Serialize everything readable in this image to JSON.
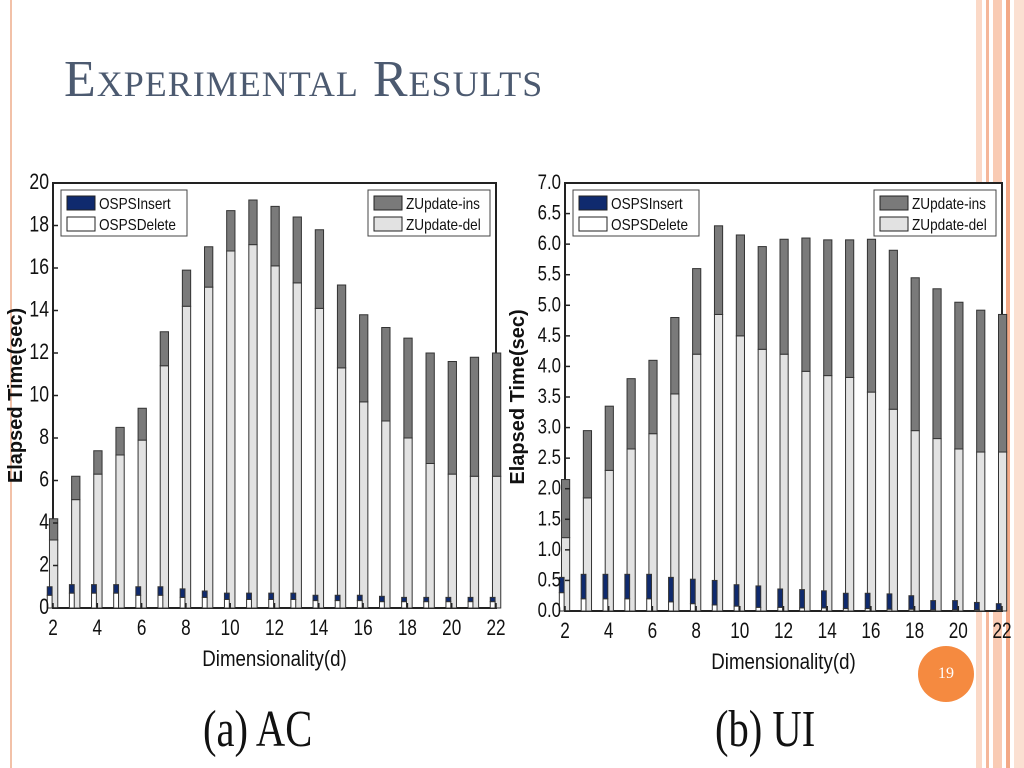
{
  "slide": {
    "title": "Experimental Results",
    "page_number": "19",
    "captions": [
      "(a) AC",
      "(b) UI"
    ]
  },
  "colors": {
    "insert": "#0f2a6e",
    "delete": "#ffffff",
    "zupdate_ins": "#7a7a7a",
    "zupdate_del": "#e2e2e2",
    "title": "#4c5a70",
    "badge": "#f58a40"
  },
  "chart_data": [
    {
      "type": "bar",
      "stacked": true,
      "xlabel": "Dimensionality(d)",
      "ylabel": "Elapsed Time(sec)",
      "ylim": [
        0,
        20
      ],
      "yticks": [
        "0",
        "2",
        "4",
        "6",
        "8",
        "10",
        "12",
        "14",
        "16",
        "18",
        "20"
      ],
      "xticks": [
        "2",
        "4",
        "6",
        "8",
        "10",
        "12",
        "14",
        "16",
        "18",
        "20",
        "22"
      ],
      "categories": [
        2,
        3,
        4,
        5,
        6,
        7,
        8,
        9,
        10,
        11,
        12,
        13,
        14,
        15,
        16,
        17,
        18,
        19,
        20,
        21,
        22
      ],
      "series_pairs": [
        {
          "bottom": "OSPSInsert",
          "top": "OSPSDelete"
        },
        {
          "bottom": "ZUpdate-del",
          "top": "ZUpdate-ins"
        }
      ],
      "legend": [
        {
          "name": "OSPSInsert",
          "position": "top-left"
        },
        {
          "name": "OSPSDelete",
          "position": "top-left"
        },
        {
          "name": "ZUpdate-ins",
          "position": "top-right"
        },
        {
          "name": "ZUpdate-del",
          "position": "top-right"
        }
      ],
      "ospsinsert": [
        0.6,
        0.7,
        0.7,
        0.7,
        0.6,
        0.6,
        0.5,
        0.5,
        0.4,
        0.4,
        0.4,
        0.4,
        0.35,
        0.35,
        0.35,
        0.3,
        0.3,
        0.3,
        0.3,
        0.3,
        0.3
      ],
      "ospsdelete": [
        0.4,
        0.4,
        0.4,
        0.4,
        0.4,
        0.4,
        0.4,
        0.3,
        0.3,
        0.3,
        0.3,
        0.3,
        0.25,
        0.25,
        0.25,
        0.25,
        0.2,
        0.2,
        0.2,
        0.2,
        0.2
      ],
      "zupdate_del": [
        3.2,
        5.1,
        6.3,
        7.2,
        7.9,
        11.4,
        14.2,
        15.1,
        16.8,
        17.1,
        16.1,
        15.3,
        14.1,
        11.3,
        9.7,
        8.8,
        8.0,
        6.8,
        6.3,
        6.2,
        6.2
      ],
      "zupdate_ins": [
        1.0,
        1.1,
        1.1,
        1.3,
        1.5,
        1.6,
        1.7,
        1.9,
        1.9,
        2.1,
        2.8,
        3.1,
        3.7,
        3.9,
        4.1,
        4.4,
        4.7,
        5.2,
        5.3,
        5.6,
        5.8
      ]
    },
    {
      "type": "bar",
      "stacked": true,
      "xlabel": "Dimensionality(d)",
      "ylabel": "Elapsed Time(sec)",
      "ylim": [
        0,
        7
      ],
      "yticks": [
        "0.0",
        "0.5",
        "1.0",
        "1.5",
        "2.0",
        "2.5",
        "3.0",
        "3.5",
        "4.0",
        "4.5",
        "5.0",
        "5.5",
        "6.0",
        "6.5",
        "7.0"
      ],
      "xticks": [
        "2",
        "4",
        "6",
        "8",
        "10",
        "12",
        "14",
        "16",
        "18",
        "20",
        "22"
      ],
      "categories": [
        2,
        3,
        4,
        5,
        6,
        7,
        8,
        9,
        10,
        11,
        12,
        13,
        14,
        15,
        16,
        17,
        18,
        19,
        20,
        21,
        22
      ],
      "series_pairs": [
        {
          "bottom": "OSPSInsert",
          "top": "OSPSDelete"
        },
        {
          "bottom": "ZUpdate-del",
          "top": "ZUpdate-ins"
        }
      ],
      "legend": [
        {
          "name": "OSPSInsert",
          "position": "top-left"
        },
        {
          "name": "OSPSDelete",
          "position": "top-left"
        },
        {
          "name": "ZUpdate-ins",
          "position": "top-right"
        },
        {
          "name": "ZUpdate-del",
          "position": "top-right"
        }
      ],
      "ospsinsert": [
        0.3,
        0.2,
        0.2,
        0.2,
        0.2,
        0.15,
        0.12,
        0.1,
        0.08,
        0.06,
        0.06,
        0.05,
        0.05,
        0.04,
        0.04,
        0.03,
        0.03,
        0.02,
        0.02,
        0.02,
        0.02
      ],
      "ospsdelete": [
        0.25,
        0.4,
        0.4,
        0.4,
        0.4,
        0.4,
        0.4,
        0.4,
        0.35,
        0.35,
        0.3,
        0.3,
        0.28,
        0.25,
        0.25,
        0.25,
        0.22,
        0.15,
        0.15,
        0.12,
        0.1
      ],
      "zupdate_del": [
        1.2,
        1.85,
        2.3,
        2.65,
        2.9,
        3.55,
        4.2,
        4.85,
        4.5,
        4.28,
        4.2,
        3.92,
        3.85,
        3.82,
        3.58,
        3.3,
        2.95,
        2.82,
        2.65,
        2.6,
        2.6
      ],
      "zupdate_ins": [
        0.95,
        1.1,
        1.05,
        1.15,
        1.2,
        1.25,
        1.4,
        1.45,
        1.65,
        1.68,
        1.88,
        2.18,
        2.22,
        2.25,
        2.5,
        2.6,
        2.5,
        2.45,
        2.4,
        2.32,
        2.25
      ]
    }
  ]
}
